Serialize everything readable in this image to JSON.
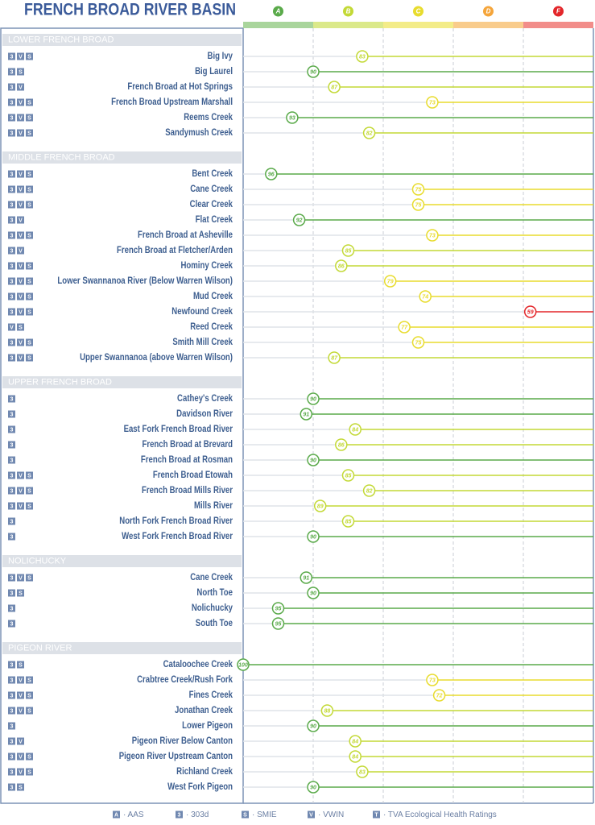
{
  "chart_data": {
    "type": "dot",
    "title": "FRENCH BROAD RIVER BASIN",
    "xlim": [
      100,
      50
    ],
    "grades": [
      {
        "label": "A",
        "from": 100,
        "to": 90,
        "color": "#5aaa4a",
        "band_color": "#a9d59c"
      },
      {
        "label": "B",
        "from": 90,
        "to": 80,
        "color": "#c3d936",
        "band_color": "#dbe98a"
      },
      {
        "label": "C",
        "from": 80,
        "to": 70,
        "color": "#e8dc2e",
        "band_color": "#f3ec88"
      },
      {
        "label": "D",
        "from": 70,
        "to": 60,
        "color": "#f5a53a",
        "band_color": "#f9cc8c"
      },
      {
        "label": "F",
        "from": 60,
        "to": 50,
        "color": "#e3262a",
        "band_color": "#f28d8a"
      }
    ],
    "sections": [
      {
        "name": "LOWER FRENCH BROAD",
        "rows": [
          {
            "name": "Big Ivy",
            "sources": [
              "3",
              "V",
              "S"
            ],
            "value": 83
          },
          {
            "name": "Big Laurel",
            "sources": [
              "3",
              "S"
            ],
            "value": 90
          },
          {
            "name": "French Broad at Hot Springs",
            "sources": [
              "3",
              "V"
            ],
            "value": 87
          },
          {
            "name": "French Broad Upstream Marshall",
            "sources": [
              "3",
              "V",
              "S"
            ],
            "value": 73
          },
          {
            "name": "Reems Creek",
            "sources": [
              "3",
              "V",
              "S"
            ],
            "value": 93
          },
          {
            "name": "Sandymush Creek",
            "sources": [
              "3",
              "V",
              "S"
            ],
            "value": 82
          }
        ]
      },
      {
        "name": "MIDDLE FRENCH BROAD",
        "rows": [
          {
            "name": "Bent Creek",
            "sources": [
              "3",
              "V",
              "S"
            ],
            "value": 96
          },
          {
            "name": "Cane Creek",
            "sources": [
              "3",
              "V",
              "S"
            ],
            "value": 75
          },
          {
            "name": "Clear Creek",
            "sources": [
              "3",
              "V",
              "S"
            ],
            "value": 75
          },
          {
            "name": "Flat Creek",
            "sources": [
              "3",
              "V"
            ],
            "value": 92
          },
          {
            "name": "French Broad at Asheville",
            "sources": [
              "3",
              "V",
              "S"
            ],
            "value": 73
          },
          {
            "name": "French Broad at Fletcher/Arden",
            "sources": [
              "3",
              "V"
            ],
            "value": 85
          },
          {
            "name": "Hominy Creek",
            "sources": [
              "3",
              "V",
              "S"
            ],
            "value": 86
          },
          {
            "name": "Lower Swannanoa River (Below Warren Wilson)",
            "sources": [
              "3",
              "V",
              "S"
            ],
            "value": 79
          },
          {
            "name": "Mud Creek",
            "sources": [
              "3",
              "V",
              "S"
            ],
            "value": 74
          },
          {
            "name": "Newfound Creek",
            "sources": [
              "3",
              "V",
              "S"
            ],
            "value": 59
          },
          {
            "name": "Reed Creek",
            "sources": [
              "V",
              "S"
            ],
            "value": 77
          },
          {
            "name": "Smith Mill Creek",
            "sources": [
              "3",
              "V",
              "S"
            ],
            "value": 75
          },
          {
            "name": "Upper Swannanoa (above Warren Wilson)",
            "sources": [
              "3",
              "V",
              "S"
            ],
            "value": 87
          }
        ]
      },
      {
        "name": "UPPER FRENCH BROAD",
        "rows": [
          {
            "name": "Cathey's Creek",
            "sources": [
              "3"
            ],
            "value": 90
          },
          {
            "name": "Davidson River",
            "sources": [
              "3"
            ],
            "value": 91
          },
          {
            "name": "East Fork French Broad River",
            "sources": [
              "3"
            ],
            "value": 84
          },
          {
            "name": "French Broad at Brevard",
            "sources": [
              "3"
            ],
            "value": 86
          },
          {
            "name": "French Broad at Rosman",
            "sources": [
              "3"
            ],
            "value": 90
          },
          {
            "name": "French Broad Etowah",
            "sources": [
              "3",
              "V",
              "S"
            ],
            "value": 85
          },
          {
            "name": "French Broad Mills River",
            "sources": [
              "3",
              "V",
              "S"
            ],
            "value": 82
          },
          {
            "name": "Mills River",
            "sources": [
              "3",
              "V",
              "S"
            ],
            "value": 89
          },
          {
            "name": "North Fork French Broad River",
            "sources": [
              "3"
            ],
            "value": 85
          },
          {
            "name": "West Fork French Broad River",
            "sources": [
              "3"
            ],
            "value": 90
          }
        ]
      },
      {
        "name": "NOLICHUCKY",
        "rows": [
          {
            "name": "Cane Creek",
            "sources": [
              "3",
              "V",
              "S"
            ],
            "value": 91
          },
          {
            "name": "North Toe",
            "sources": [
              "3",
              "S"
            ],
            "value": 90
          },
          {
            "name": "Nolichucky",
            "sources": [
              "3"
            ],
            "value": 95
          },
          {
            "name": "South Toe",
            "sources": [
              "3"
            ],
            "value": 95
          }
        ]
      },
      {
        "name": "PIGEON RIVER",
        "rows": [
          {
            "name": "Cataloochee Creek",
            "sources": [
              "3",
              "S"
            ],
            "value": 100
          },
          {
            "name": "Crabtree Creek/Rush Fork",
            "sources": [
              "3",
              "V",
              "S"
            ],
            "value": 73
          },
          {
            "name": "Fines Creek",
            "sources": [
              "3",
              "V",
              "S"
            ],
            "value": 72
          },
          {
            "name": "Jonathan Creek",
            "sources": [
              "3",
              "V",
              "S"
            ],
            "value": 88
          },
          {
            "name": "Lower Pigeon",
            "sources": [
              "3"
            ],
            "value": 90
          },
          {
            "name": "Pigeon River Below Canton",
            "sources": [
              "3",
              "V"
            ],
            "value": 84
          },
          {
            "name": "Pigeon River Upstream Canton",
            "sources": [
              "3",
              "V",
              "S"
            ],
            "value": 84
          },
          {
            "name": "Richland Creek",
            "sources": [
              "3",
              "V",
              "S"
            ],
            "value": 83
          },
          {
            "name": "West Fork Pigeon",
            "sources": [
              "3",
              "S"
            ],
            "value": 90
          }
        ]
      }
    ],
    "legend": [
      {
        "code": "A",
        "label": "· AAS"
      },
      {
        "code": "3",
        "label": "· 303d"
      },
      {
        "code": "S",
        "label": "· SMIE"
      },
      {
        "code": "V",
        "label": "· VWIN"
      },
      {
        "code": "T",
        "label": "· TVA Ecological Health Ratings"
      }
    ]
  }
}
